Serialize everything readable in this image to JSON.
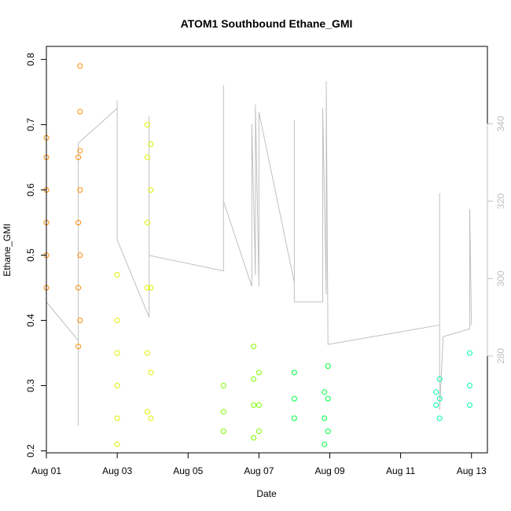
{
  "chart_data": {
    "type": "scatter",
    "title": "ATOM1 Southbound Ethane_GMI",
    "xlabel": "Date",
    "ylabel": "Ethane_GMI",
    "y2label": "",
    "xlim": [
      0.0,
      12.45
    ],
    "ylim": [
      0.197,
      0.82
    ],
    "y2lim": [
      255,
      360
    ],
    "x_ticks": [
      {
        "x": 0,
        "label": "Aug 01"
      },
      {
        "x": 2,
        "label": "Aug 03"
      },
      {
        "x": 4,
        "label": "Aug 05"
      },
      {
        "x": 6,
        "label": "Aug 07"
      },
      {
        "x": 8,
        "label": "Aug 09"
      },
      {
        "x": 10,
        "label": "Aug 11"
      },
      {
        "x": 12,
        "label": "Aug 13"
      }
    ],
    "y_ticks": [
      0.2,
      0.3,
      0.4,
      0.5,
      0.6,
      0.7,
      0.8
    ],
    "y2_ticks": [
      280,
      300,
      320,
      340
    ],
    "colors": {
      "axis": "#000000",
      "right_axis": "#c0c0c0",
      "secondary_line": "#c0c0c0"
    },
    "series": [
      {
        "color": "#ff8c00",
        "points": [
          [
            0.0,
            0.45
          ],
          [
            0.0,
            0.5
          ],
          [
            0.0,
            0.55
          ],
          [
            0.0,
            0.6
          ],
          [
            0.0,
            0.65
          ],
          [
            0.0,
            0.68
          ],
          [
            0.9,
            0.36
          ],
          [
            0.9,
            0.45
          ],
          [
            0.9,
            0.55
          ],
          [
            0.9,
            0.65
          ],
          [
            0.95,
            0.79
          ],
          [
            0.95,
            0.72
          ],
          [
            0.95,
            0.66
          ],
          [
            0.95,
            0.6
          ],
          [
            0.95,
            0.5
          ],
          [
            0.95,
            0.4
          ]
        ]
      },
      {
        "color": "#e0f000",
        "points": [
          [
            2.0,
            0.21
          ],
          [
            2.0,
            0.25
          ],
          [
            2.0,
            0.3
          ],
          [
            2.0,
            0.35
          ],
          [
            2.0,
            0.4
          ],
          [
            2.0,
            0.47
          ],
          [
            2.85,
            0.26
          ],
          [
            2.85,
            0.35
          ],
          [
            2.85,
            0.45
          ],
          [
            2.85,
            0.55
          ],
          [
            2.85,
            0.65
          ],
          [
            2.85,
            0.7
          ],
          [
            2.95,
            0.25
          ],
          [
            2.95,
            0.32
          ],
          [
            2.95,
            0.45
          ],
          [
            2.95,
            0.6
          ],
          [
            2.95,
            0.67
          ]
        ]
      },
      {
        "color": "#7cfc00",
        "points": [
          [
            5.0,
            0.23
          ],
          [
            5.0,
            0.26
          ],
          [
            5.0,
            0.3
          ],
          [
            5.85,
            0.22
          ],
          [
            5.85,
            0.27
          ],
          [
            5.85,
            0.31
          ],
          [
            5.85,
            0.36
          ],
          [
            6.0,
            0.23
          ],
          [
            6.0,
            0.27
          ],
          [
            6.0,
            0.32
          ]
        ]
      },
      {
        "color": "#00ff40",
        "points": [
          [
            7.0,
            0.25
          ],
          [
            7.0,
            0.28
          ],
          [
            7.0,
            0.32
          ],
          [
            7.85,
            0.21
          ],
          [
            7.85,
            0.25
          ],
          [
            7.85,
            0.29
          ],
          [
            7.95,
            0.23
          ],
          [
            7.95,
            0.28
          ],
          [
            7.95,
            0.33
          ]
        ]
      },
      {
        "color": "#00ffb0",
        "points": [
          [
            11.0,
            0.27
          ],
          [
            11.0,
            0.29
          ],
          [
            11.1,
            0.25
          ],
          [
            11.1,
            0.28
          ],
          [
            11.1,
            0.31
          ],
          [
            11.95,
            0.27
          ],
          [
            11.95,
            0.3
          ],
          [
            11.95,
            0.35
          ]
        ]
      }
    ],
    "line_series": {
      "color": "#c0c0c0",
      "axis": "right",
      "points": [
        [
          0.0,
          294
        ],
        [
          0.9,
          284
        ],
        [
          0.9,
          262
        ],
        [
          0.9,
          335
        ],
        [
          2.0,
          344
        ],
        [
          2.0,
          346
        ],
        [
          2.0,
          310
        ],
        [
          2.9,
          290
        ],
        [
          2.9,
          342
        ],
        [
          2.9,
          306
        ],
        [
          5.0,
          302
        ],
        [
          5.0,
          350
        ],
        [
          5.0,
          320
        ],
        [
          5.8,
          298
        ],
        [
          5.8,
          340
        ],
        [
          5.9,
          301
        ],
        [
          5.9,
          345
        ],
        [
          6.0,
          298
        ],
        [
          6.0,
          343
        ],
        [
          7.0,
          299
        ],
        [
          7.0,
          341
        ],
        [
          7.0,
          294
        ],
        [
          7.8,
          294
        ],
        [
          7.8,
          344
        ],
        [
          7.9,
          296
        ],
        [
          7.9,
          351
        ],
        [
          7.95,
          283
        ],
        [
          11.1,
          288
        ],
        [
          11.1,
          322
        ],
        [
          11.1,
          266
        ],
        [
          11.2,
          285
        ],
        [
          11.95,
          287
        ],
        [
          11.95,
          318
        ],
        [
          12.0,
          288
        ]
      ]
    }
  }
}
